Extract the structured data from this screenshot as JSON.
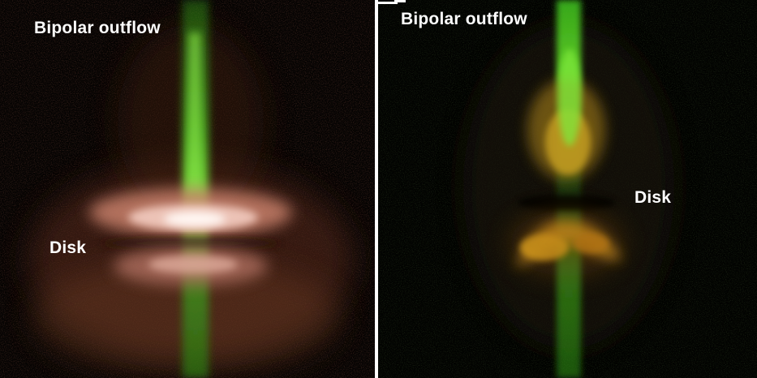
{
  "panels": [
    {
      "id": "left",
      "labels": {
        "outflow": "Bipolar outflow",
        "disk": "Disk"
      }
    },
    {
      "id": "right",
      "labels": {
        "outflow": "Bipolar outflow",
        "disk": "Disk"
      }
    }
  ],
  "colors": {
    "background": "#000000",
    "outflow": "#5fd42a",
    "disk_glow": "#c8806a",
    "disk_core": "#fff4ee",
    "reflection_nebula": "#e0a020",
    "label": "#ffffff"
  }
}
